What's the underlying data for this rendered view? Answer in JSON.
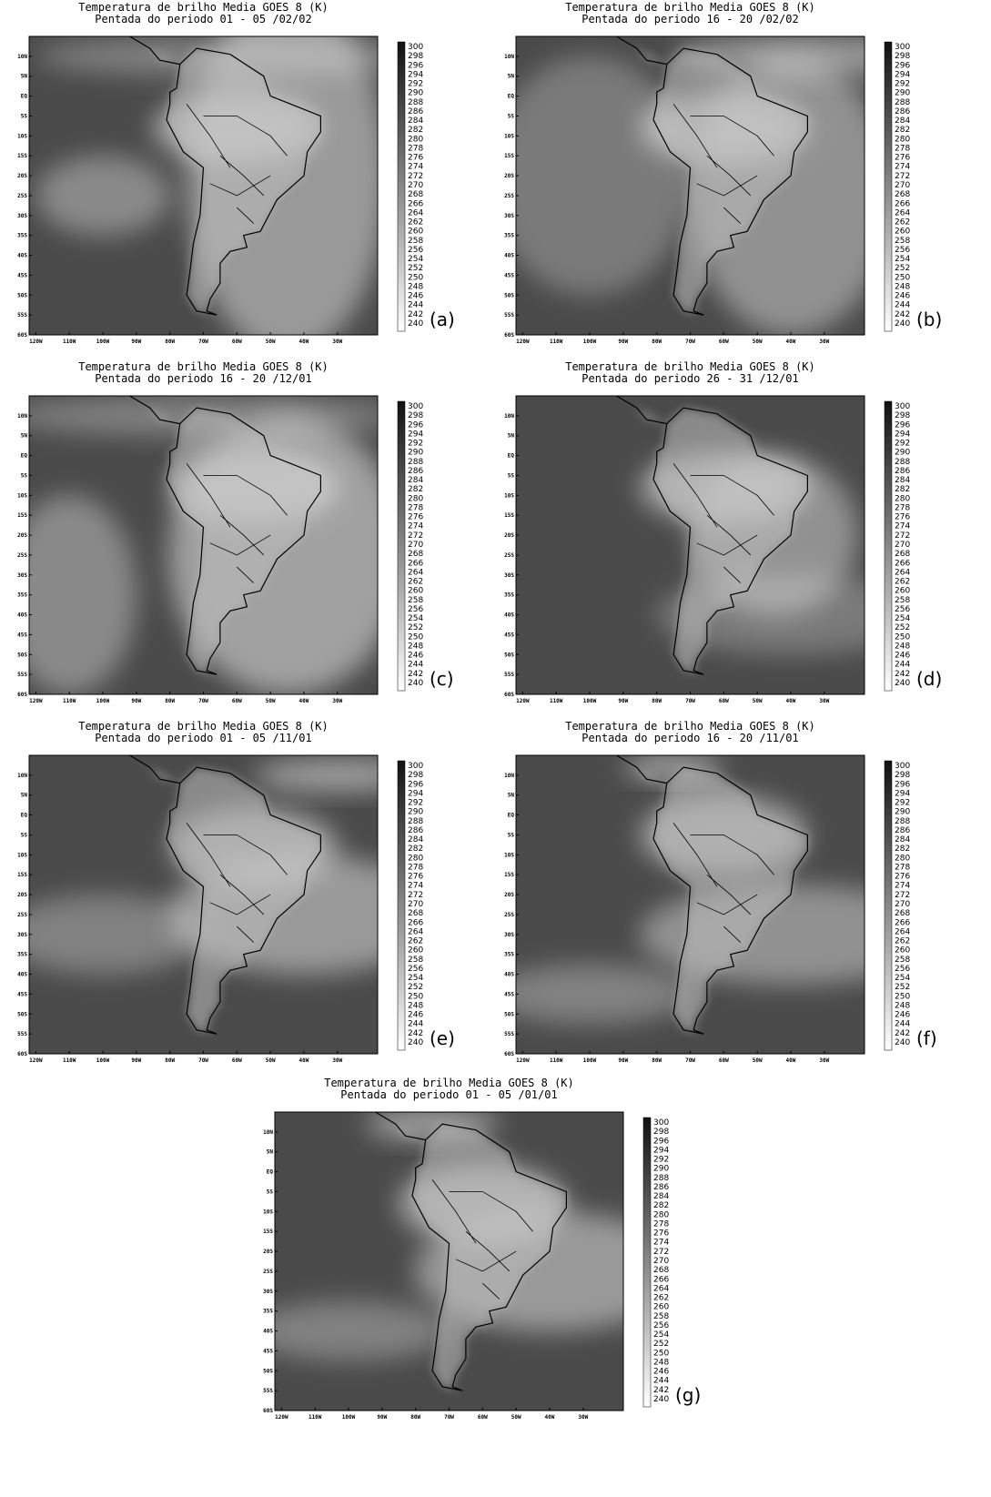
{
  "panels": [
    {
      "title": "Temperatura de brilho Media GOES 8 (K)",
      "subtitle": "Pentada do periodo 01 - 05 /02/02",
      "letter": "(a)"
    },
    {
      "title": "Temperatura de brilho Media GOES 8 (K)",
      "subtitle": "Pentada do periodo 16 - 20 /02/02",
      "letter": "(b)"
    },
    {
      "title": "Temperatura de brilho Media GOES 8 (K)",
      "subtitle": "Pentada do periodo 16 - 20 /12/01",
      "letter": "(c)"
    },
    {
      "title": "Temperatura de brilho Media GOES 8 (K)",
      "subtitle": "Pentada do periodo 26 - 31 /12/01",
      "letter": "(d)"
    },
    {
      "title": "Temperatura de brilho Media GOES 8 (K)",
      "subtitle": "Pentada do periodo 01 - 05 /11/01",
      "letter": "(e)"
    },
    {
      "title": "Temperatura de brilho Media GOES 8 (K)",
      "subtitle": "Pentada do periodo 16 - 20 /11/01",
      "letter": "(f)"
    },
    {
      "title": "Temperatura de brilho Media GOES 8 (K)",
      "subtitle": "Pentada do periodo 01 - 05 /01/01",
      "letter": "(g)"
    }
  ],
  "lat_labels": [
    "10N",
    "5N",
    "EQ",
    "5S",
    "10S",
    "15S",
    "20S",
    "25S",
    "30S",
    "35S",
    "40S",
    "45S",
    "50S",
    "55S",
    "60S"
  ],
  "lon_labels": [
    "120W",
    "110W",
    "100W",
    "90W",
    "80W",
    "70W",
    "60W",
    "50W",
    "40W",
    "30W"
  ],
  "colorbar_labels": [
    300,
    298,
    296,
    294,
    292,
    290,
    288,
    286,
    284,
    282,
    280,
    278,
    276,
    274,
    272,
    270,
    268,
    266,
    264,
    262,
    260,
    258,
    256,
    254,
    252,
    250,
    248,
    246,
    244,
    242,
    240
  ]
}
